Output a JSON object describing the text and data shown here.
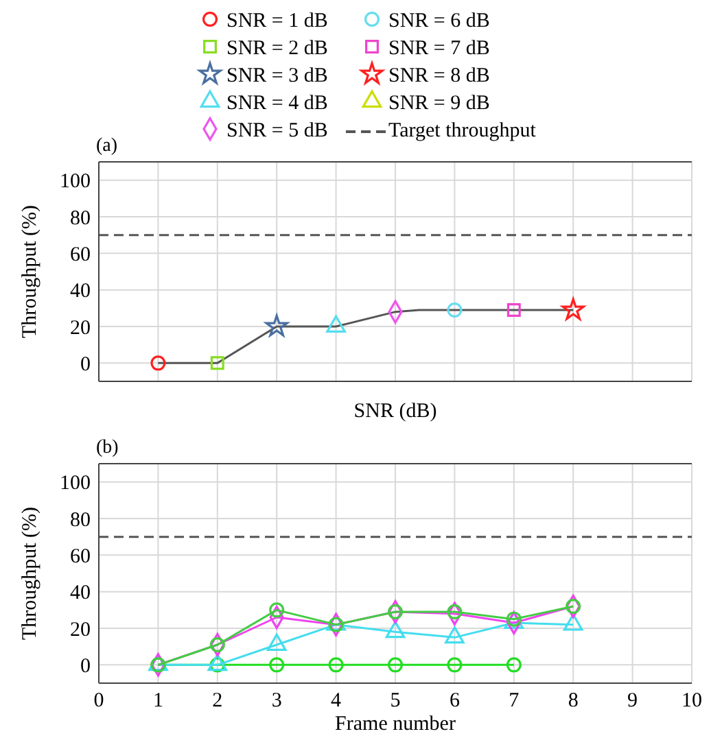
{
  "chart_data": [
    {
      "type": "line",
      "annotations": [
        "(a)"
      ],
      "xlabel": "SNR (dB)",
      "ylabel": "Throughput (%)",
      "xlim": [
        0,
        10
      ],
      "ylim": [
        -10,
        110
      ],
      "xticks": [
        0,
        1,
        2,
        3,
        4,
        5,
        6,
        7,
        8,
        9,
        10
      ],
      "yticks": [
        0,
        20,
        40,
        60,
        80,
        100
      ],
      "tick_labels": "y",
      "grid": true,
      "legend": "top",
      "series": [
        {
          "color": "#555555",
          "marker": "none",
          "x": [
            1,
            2,
            3,
            4,
            5,
            5.4,
            6,
            7,
            8
          ],
          "values": [
            0,
            0,
            20,
            20,
            28,
            29,
            29,
            29,
            29
          ]
        },
        {
          "name": "SNR = 1 dB",
          "type": "scatter",
          "color": "#ff2020",
          "marker": "circle",
          "x": [
            1
          ],
          "values": [
            0
          ]
        },
        {
          "name": "SNR = 2 dB",
          "type": "scatter",
          "color": "#88dd22",
          "marker": "square",
          "x": [
            2
          ],
          "values": [
            0
          ]
        },
        {
          "name": "SNR = 3 dB",
          "type": "scatter",
          "color": "#4a6fa0",
          "marker": "star",
          "x": [
            3
          ],
          "values": [
            20
          ]
        },
        {
          "name": "SNR = 4 dB",
          "type": "scatter",
          "color": "#55ddee",
          "marker": "triangle",
          "x": [
            4
          ],
          "values": [
            20
          ]
        },
        {
          "name": "SNR = 5 dB",
          "type": "scatter",
          "color": "#ee55ee",
          "marker": "diamond",
          "x": [
            5
          ],
          "values": [
            28
          ]
        },
        {
          "name": "SNR = 6 dB",
          "type": "scatter",
          "color": "#66ddee",
          "marker": "circle",
          "x": [
            6
          ],
          "values": [
            29
          ]
        },
        {
          "name": "SNR = 7 dB",
          "type": "scatter",
          "color": "#ee44cc",
          "marker": "square",
          "x": [
            7
          ],
          "values": [
            29
          ]
        },
        {
          "name": "SNR = 8 dB",
          "type": "scatter",
          "color": "#ff2020",
          "marker": "star",
          "x": [
            8
          ],
          "values": [
            29
          ]
        },
        {
          "name": "SNR = 9 dB",
          "type": "scatter",
          "color": "#ccdd00",
          "marker": "triangle"
        }
      ],
      "ref_lines": [
        {
          "axis": "y",
          "value": 70,
          "label": "Target throughput",
          "color": "#555555",
          "line_style": "dashed"
        }
      ]
    },
    {
      "type": "line",
      "annotations": [
        "(b)"
      ],
      "xlabel": "Frame number",
      "ylabel": "Throughput (%)",
      "xlim": [
        0,
        10
      ],
      "ylim": [
        -10,
        110
      ],
      "xticks": [
        0,
        1,
        2,
        3,
        4,
        5,
        6,
        7,
        8,
        9,
        10
      ],
      "yticks": [
        0,
        20,
        40,
        60,
        80,
        100
      ],
      "grid": true,
      "x": [
        1,
        2,
        3,
        4,
        5,
        6,
        7,
        8
      ],
      "series": [
        {
          "color": "#22dd22",
          "marker": "circle",
          "values": [
            0,
            0,
            0,
            0,
            0,
            0,
            0,
            null
          ]
        },
        {
          "color": "#44ddee",
          "marker": "triangle",
          "values": [
            0,
            0,
            11,
            22,
            18,
            15,
            23,
            22
          ]
        },
        {
          "color": "#ee44ee",
          "marker": "diamond",
          "values": [
            0,
            11,
            26,
            22,
            29,
            28,
            23,
            32
          ]
        },
        {
          "color": "#44cc44",
          "marker": "circle",
          "values": [
            0,
            11,
            30,
            22,
            29,
            29,
            25,
            32
          ]
        }
      ],
      "ref_lines": [
        {
          "axis": "y",
          "value": 70,
          "color": "#555555",
          "line_style": "dashed"
        }
      ]
    }
  ]
}
